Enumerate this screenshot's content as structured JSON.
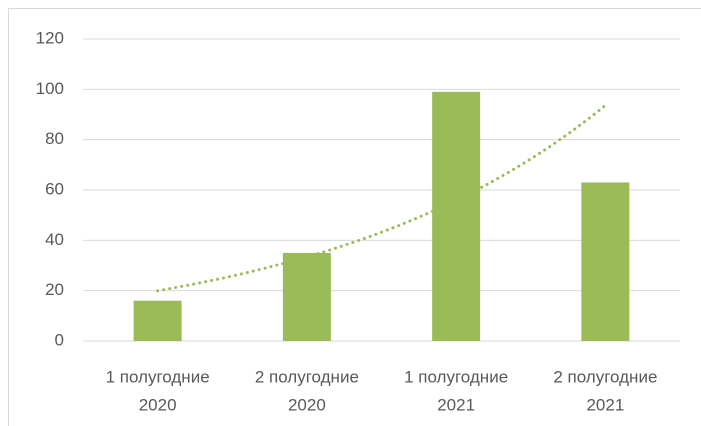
{
  "chart_data": {
    "type": "bar",
    "categories": [
      [
        "1 полугодние",
        "2020"
      ],
      [
        "2 полугодние",
        "2020"
      ],
      [
        "1 полугодние",
        "2021"
      ],
      [
        "2 полугодние",
        "2021"
      ]
    ],
    "values": [
      16,
      35,
      99,
      63
    ],
    "color": "#9bbb59",
    "ylim": [
      0,
      120
    ],
    "yticks": [
      0,
      20,
      40,
      60,
      80,
      100,
      120
    ],
    "grid": true,
    "trendline": "exponential",
    "trendline_color": "#9bbb59"
  }
}
